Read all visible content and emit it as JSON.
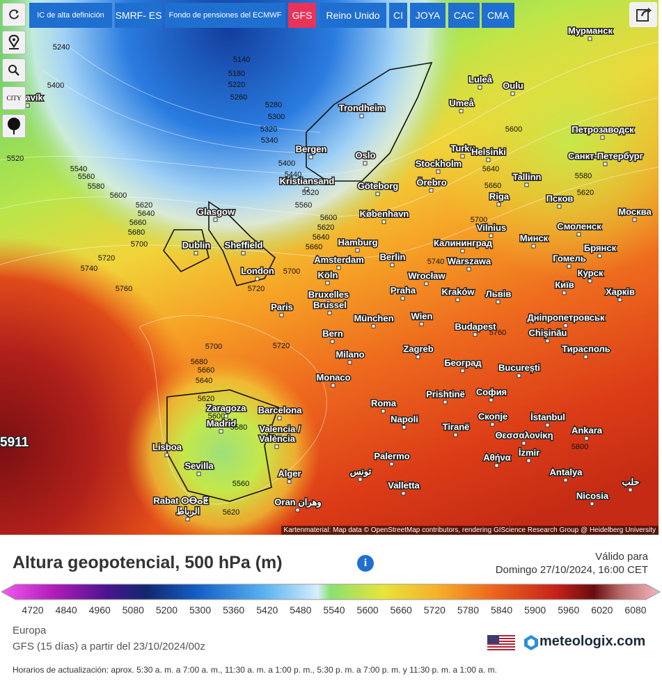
{
  "toolbar": {
    "buttons": [
      "IC de alta definición",
      "SMRF- ES",
      "Fondo de pensiones del ECMWF",
      "GFS",
      "Reino Unido",
      "CI",
      "JOYA",
      "CAC",
      "CMA"
    ],
    "city_icon_label": "CITY"
  },
  "map": {
    "cities": [
      "ykjavík",
      "Trondheim",
      "Bergen",
      "Oslo",
      "Kristiansand",
      "Göteborg",
      "Stockholm",
      "Örebro",
      "Turku",
      "Helsinki",
      "Tallinn",
      "Luleå",
      "Oulu",
      "Umeå",
      "Мурманск",
      "Петрозаводск",
      "Санкт-Петербург",
      "Riga",
      "Псков",
      "Glasgow",
      "Dublin",
      "Sheffield",
      "London",
      "København",
      "Hamburg",
      "Amsterdam",
      "Berlin",
      "Vilnius",
      "Калининград",
      "Минск",
      "Смоленск",
      "Москва",
      "Брянск",
      "Гомель",
      "Курск",
      "Warszawa",
      "Köln",
      "Paris",
      "Bruxelles",
      "Brussel",
      "Wrocław",
      "Praha",
      "Kraków",
      "Львів",
      "Київ",
      "Харків",
      "München",
      "Wien",
      "Budapest",
      "Дніпропетровськ",
      "Chișinău",
      "Bern",
      "Zagreb",
      "Milano",
      "Тирасполь",
      "Monaco",
      "Београд",
      "București",
      "Zaragoza",
      "Barcelona",
      "Madrid",
      "Valencia /",
      "València",
      "Prishtinë",
      "София",
      "Roma",
      "Napoli",
      "Скопје",
      "İstanbul",
      "Ankara",
      "Lisboa",
      "Tiranë",
      "Θεσσαλονίκη",
      "Sevilla",
      "Alger",
      "Palermo",
      "Αθήνα",
      "İzmir",
      "تونس",
      "Valletta",
      "Antalya",
      "Rabat ⵔⴱⴰⵟ",
      "الرباط",
      "Oran وهران",
      "Nicosia",
      "حلب"
    ],
    "contours": [
      5240,
      5400,
      5520,
      5540,
      5560,
      5580,
      5600,
      5620,
      5640,
      5660,
      5680,
      5700,
      5720,
      5740,
      5760,
      5140,
      5180,
      5220,
      5260,
      5280,
      5300,
      5320,
      5340,
      5400,
      5440,
      5520,
      5560,
      5600,
      5620,
      5640,
      5660,
      5700,
      5720,
      5700,
      5720,
      5680,
      5660,
      5640,
      5620,
      5600,
      5580,
      5560,
      5620,
      5600,
      5640,
      5660,
      5580,
      5620,
      5700,
      5740,
      5760,
      5800
    ],
    "max_label": "5911",
    "attribution": "Kartenmaterial: Map data © OpenStreetMap contributors, rendering GIScience Research Group @ Heidelberg University"
  },
  "legend": {
    "title": "Altura geopotencial, 500 hPa (m)",
    "valid_label": "Válido para",
    "valid_time": "Domingo 27/10/2024, 16:00 CET",
    "ticks": [
      4720,
      4840,
      4960,
      5080,
      5200,
      5300,
      5360,
      5420,
      5480,
      5540,
      5600,
      5660,
      5720,
      5780,
      5840,
      5900,
      5960,
      6020,
      6080
    ],
    "region": "Europa",
    "model_run": "GFS (15 días) a partir del 23/10/2024/00z",
    "brand": "meteologix.com",
    "update_note": "Horarios de actualización: aprox. 5:30 a. m. a 7:00 a. m., 11:30 a. m. a 1:00 p. m., 5:30 p. m. a 7:00 p. m. y 11:30 p. m. a 1:00 a. m."
  }
}
